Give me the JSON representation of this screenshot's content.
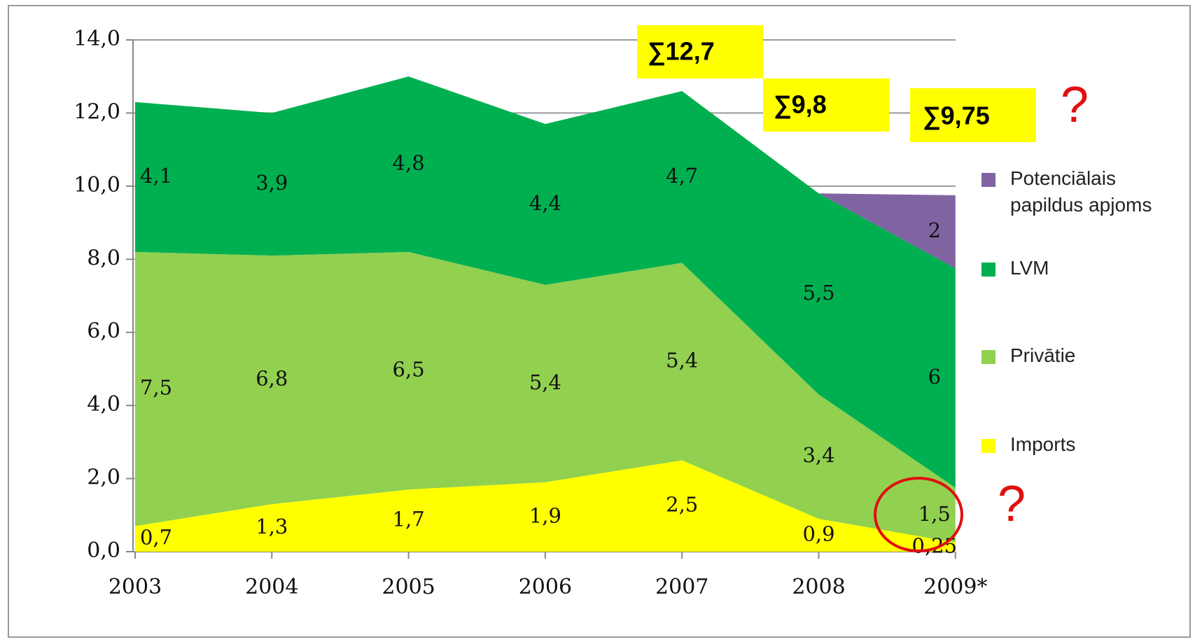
{
  "chart_data": {
    "type": "stacked_area",
    "categories": [
      "2003",
      "2004",
      "2005",
      "2006",
      "2007",
      "2008",
      "2009*"
    ],
    "series": [
      {
        "name": "Imports",
        "color": "#ffff00",
        "values": [
          0.7,
          1.3,
          1.7,
          1.9,
          2.5,
          0.9,
          0.25
        ],
        "value_labels": [
          "0,7",
          "1,3",
          "1,7",
          "1,9",
          "2,5",
          "0,9",
          "0,25"
        ]
      },
      {
        "name": "Privātie",
        "color": "#92d050",
        "values": [
          7.5,
          6.8,
          6.5,
          5.4,
          5.4,
          3.4,
          1.5
        ],
        "value_labels": [
          "7,5",
          "6,8",
          "6,5",
          "5,4",
          "5,4",
          "3,4",
          "1,5"
        ]
      },
      {
        "name": "LVM",
        "color": "#00b050",
        "values": [
          4.1,
          3.9,
          4.8,
          4.4,
          4.7,
          5.5,
          6
        ],
        "value_labels": [
          "4,1",
          "3,9",
          "4,8",
          "4,4",
          "4,7",
          "5,5",
          "6"
        ]
      },
      {
        "name": "Potenciālais papildus apjoms",
        "color": "#8064a2",
        "values": [
          null,
          null,
          null,
          null,
          null,
          0,
          2
        ],
        "value_labels": [
          null,
          null,
          null,
          null,
          null,
          null,
          "2"
        ]
      }
    ],
    "ylim": [
      0,
      14
    ],
    "yticks": [
      {
        "value": 0,
        "label": "0,0"
      },
      {
        "value": 2,
        "label": "2,0"
      },
      {
        "value": 4,
        "label": "4,0"
      },
      {
        "value": 6,
        "label": "6,0"
      },
      {
        "value": 8,
        "label": "8,0"
      },
      {
        "value": 10,
        "label": "10,0"
      },
      {
        "value": 12,
        "label": "12,0"
      },
      {
        "value": 14,
        "label": "14,0"
      }
    ],
    "grid": true,
    "legend": "right",
    "annotations": [
      "∑12,7",
      "∑9,8",
      "∑9,75",
      "?",
      "?"
    ]
  }
}
